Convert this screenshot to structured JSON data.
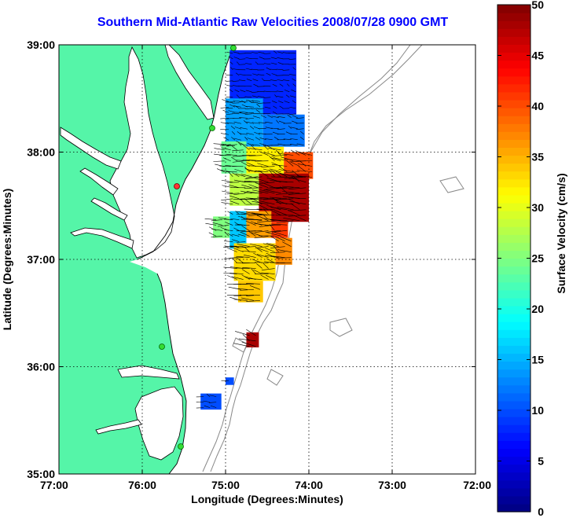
{
  "title": "Southern Mid-Atlantic Raw Velocities 2008/07/28 0900 GMT",
  "map": {
    "xlabel": "Longitude (Degrees:Minutes)",
    "ylabel": "Latitude (Degrees:Minutes)",
    "x_ticks": [
      "77:00",
      "76:00",
      "75:00",
      "74:00",
      "73:00",
      "72:00"
    ],
    "y_ticks": [
      "39:00",
      "38:00",
      "37:00",
      "36:00",
      "35:00"
    ],
    "lon_range": [
      -77,
      -72
    ],
    "lat_range": [
      35,
      39
    ],
    "land_color": "#55f5a8",
    "grid": "dotted"
  },
  "colorbar": {
    "label": "Surface Velocity (cm/s)",
    "ticks": [
      "50",
      "45",
      "40",
      "35",
      "30",
      "25",
      "20",
      "15",
      "10",
      "5",
      "0"
    ],
    "range": [
      0,
      50
    ],
    "colormap": "jet"
  },
  "chart_data": {
    "type": "heatmap",
    "title": "Southern Mid-Atlantic Raw Velocities 2008/07/28 0900 GMT",
    "xlabel": "Longitude (Degrees:Minutes)",
    "ylabel": "Latitude (Degrees:Minutes)",
    "xlim": [
      -77,
      -72
    ],
    "ylim": [
      35,
      39
    ],
    "value_range": [
      0,
      50
    ],
    "value_label": "Surface Velocity (cm/s)",
    "regions": [
      {
        "lon": [
          -74.95,
          -74.15
        ],
        "lat": [
          38.35,
          38.95
        ],
        "speed": 8
      },
      {
        "lon": [
          -75.0,
          -74.55
        ],
        "lat": [
          38.05,
          38.5
        ],
        "speed": 14
      },
      {
        "lon": [
          -74.55,
          -74.05
        ],
        "lat": [
          38.05,
          38.35
        ],
        "speed": 12
      },
      {
        "lon": [
          -75.05,
          -74.75
        ],
        "lat": [
          37.8,
          38.1
        ],
        "speed": 24
      },
      {
        "lon": [
          -74.75,
          -74.3
        ],
        "lat": [
          37.8,
          38.05
        ],
        "speed": 32
      },
      {
        "lon": [
          -74.3,
          -73.95
        ],
        "lat": [
          37.75,
          38.0
        ],
        "speed": 40
      },
      {
        "lon": [
          -74.95,
          -74.6
        ],
        "lat": [
          37.5,
          37.8
        ],
        "speed": 28
      },
      {
        "lon": [
          -74.6,
          -74.0
        ],
        "lat": [
          37.35,
          37.8
        ],
        "speed": 48
      },
      {
        "lon": [
          -75.15,
          -74.9
        ],
        "lat": [
          37.2,
          37.4
        ],
        "speed": 25
      },
      {
        "lon": [
          -74.95,
          -74.75
        ],
        "lat": [
          37.1,
          37.45
        ],
        "speed": 16
      },
      {
        "lon": [
          -74.75,
          -74.45
        ],
        "lat": [
          37.2,
          37.45
        ],
        "speed": 36
      },
      {
        "lon": [
          -74.45,
          -74.25
        ],
        "lat": [
          37.2,
          37.35
        ],
        "speed": 41
      },
      {
        "lon": [
          -74.9,
          -74.4
        ],
        "lat": [
          36.8,
          37.15
        ],
        "speed": 33
      },
      {
        "lon": [
          -74.4,
          -74.2
        ],
        "lat": [
          36.95,
          37.2
        ],
        "speed": 37
      },
      {
        "lon": [
          -74.85,
          -74.55
        ],
        "lat": [
          36.6,
          36.8
        ],
        "speed": 34
      },
      {
        "lon": [
          -74.75,
          -74.6
        ],
        "lat": [
          36.18,
          36.32
        ],
        "speed": 48
      },
      {
        "lon": [
          -75.3,
          -75.05
        ],
        "lat": [
          35.6,
          35.75
        ],
        "speed": 10
      },
      {
        "lon": [
          -75.0,
          -74.9
        ],
        "lat": [
          35.83,
          35.9
        ],
        "speed": 10
      }
    ]
  }
}
